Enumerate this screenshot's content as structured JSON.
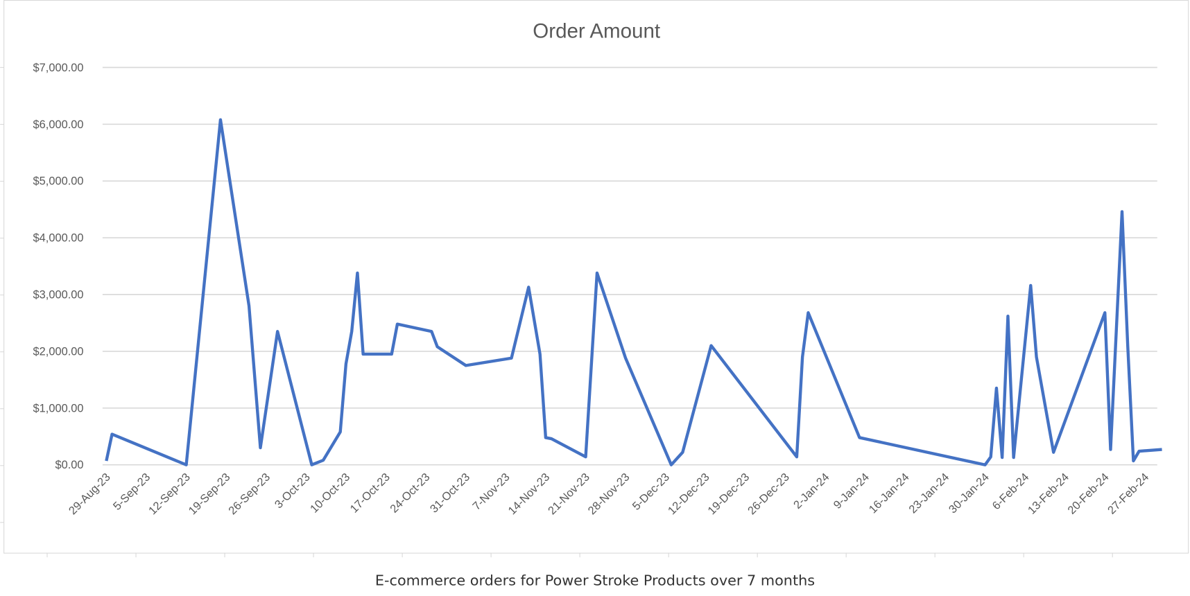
{
  "chart_data": {
    "type": "line",
    "title": "Order Amount",
    "caption": "E-commerce orders for Power Stroke Products over 7 months",
    "xlabel": "",
    "ylabel": "",
    "ylim": [
      0,
      7000
    ],
    "y_ticks": [
      0,
      1000,
      2000,
      3000,
      4000,
      5000,
      6000,
      7000
    ],
    "y_tick_labels": [
      "$0.00",
      "$1,000.00",
      "$2,000.00",
      "$3,000.00",
      "$4,000.00",
      "$5,000.00",
      "$6,000.00",
      "$7,000.00"
    ],
    "x_start": "2023-08-29",
    "x_tick_labels": [
      "29-Aug-23",
      "5-Sep-23",
      "12-Sep-23",
      "19-Sep-23",
      "26-Sep-23",
      "3-Oct-23",
      "10-Oct-23",
      "17-Oct-23",
      "24-Oct-23",
      "31-Oct-23",
      "7-Nov-23",
      "14-Nov-23",
      "21-Nov-23",
      "28-Nov-23",
      "5-Dec-23",
      "12-Dec-23",
      "19-Dec-23",
      "26-Dec-23",
      "2-Jan-24",
      "9-Jan-24",
      "16-Jan-24",
      "23-Jan-24",
      "30-Jan-24",
      "6-Feb-24",
      "13-Feb-24",
      "20-Feb-24",
      "27-Feb-24"
    ],
    "grid": true,
    "line_color": "#4472C4",
    "series": [
      {
        "name": "Order Amount",
        "x": [
          "2023-08-29",
          "2023-08-30",
          "2023-09-12",
          "2023-09-18",
          "2023-09-23",
          "2023-09-25",
          "2023-09-28",
          "2023-10-04",
          "2023-10-06",
          "2023-10-09",
          "2023-10-10",
          "2023-10-11",
          "2023-10-12",
          "2023-10-13",
          "2023-10-18",
          "2023-10-19",
          "2023-10-25",
          "2023-10-26",
          "2023-10-31",
          "2023-11-08",
          "2023-11-11",
          "2023-11-13",
          "2023-11-14",
          "2023-11-15",
          "2023-11-21",
          "2023-11-23",
          "2023-11-28",
          "2023-12-06",
          "2023-12-08",
          "2023-12-13",
          "2023-12-28",
          "2023-12-29",
          "2023-12-30",
          "2024-01-08",
          "2024-01-30",
          "2024-01-31",
          "2024-02-01",
          "2024-02-02",
          "2024-02-03",
          "2024-02-04",
          "2024-02-07",
          "2024-02-08",
          "2024-02-11",
          "2024-02-20",
          "2024-02-21",
          "2024-02-23",
          "2024-02-24",
          "2024-02-25",
          "2024-02-26",
          "2024-03-01"
        ],
        "values": [
          70,
          540,
          0,
          6080,
          2800,
          300,
          2350,
          0,
          80,
          580,
          1780,
          2350,
          3380,
          1950,
          1950,
          2480,
          2350,
          2080,
          1750,
          1880,
          3130,
          1950,
          480,
          460,
          140,
          3380,
          1880,
          0,
          220,
          2100,
          140,
          1900,
          2680,
          480,
          0,
          140,
          1350,
          130,
          2620,
          130,
          3160,
          1900,
          220,
          2680,
          270,
          4460,
          2100,
          70,
          240,
          270
        ]
      }
    ]
  }
}
